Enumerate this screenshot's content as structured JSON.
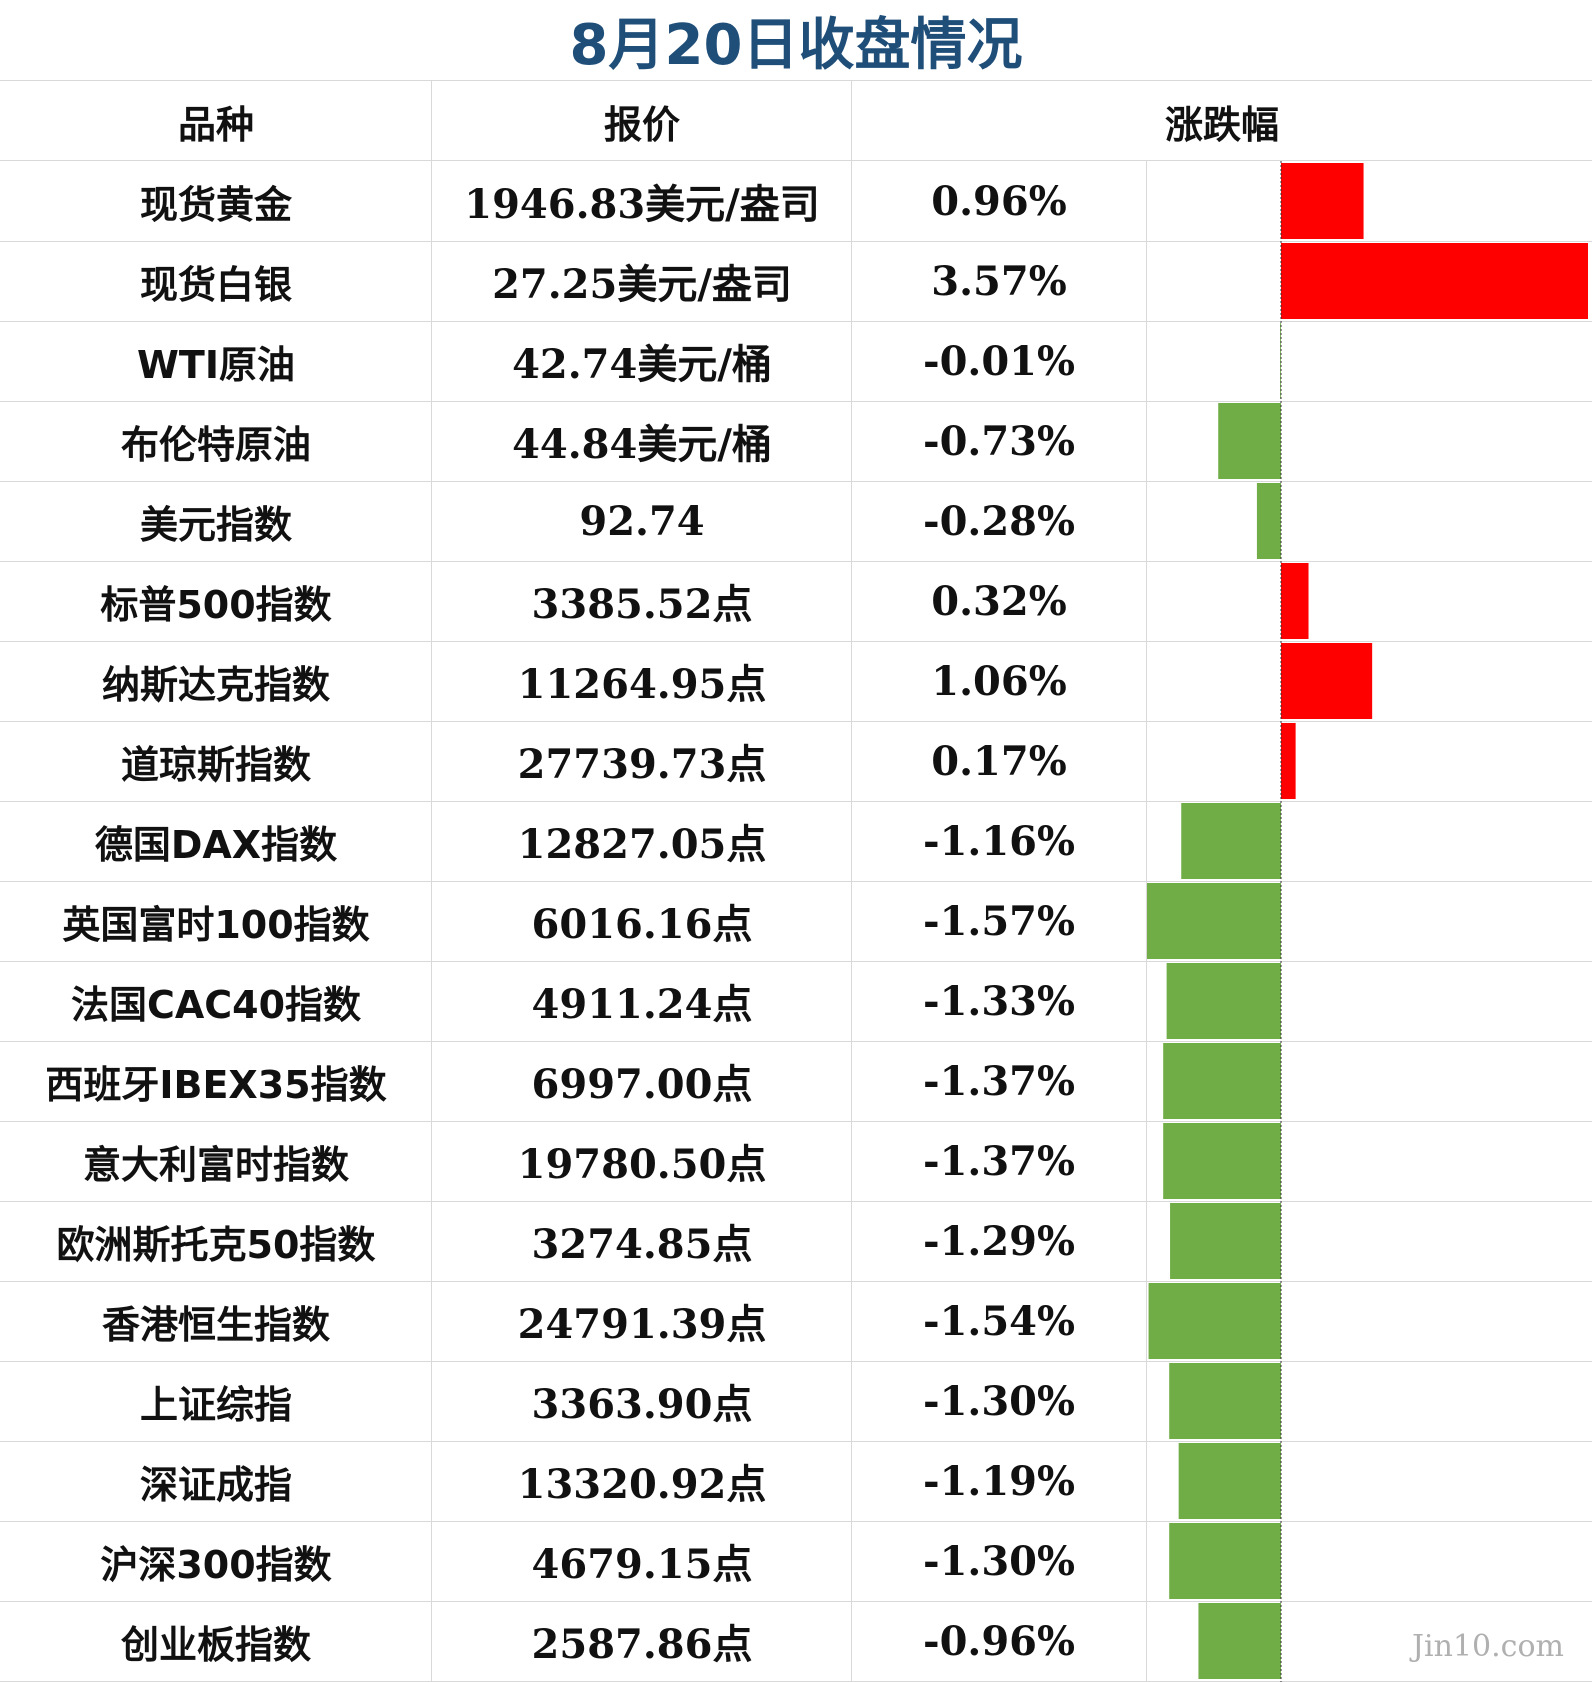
{
  "title": "8月20日收盘情况",
  "headers": {
    "name": "品种",
    "price": "报价",
    "change": "涨跌幅"
  },
  "colors": {
    "title": "#1f4e79",
    "up": "#ff0000",
    "down": "#70ad47",
    "grid": "#d9d9d9"
  },
  "watermark": "Jin10.com",
  "chart_data": {
    "type": "table",
    "columns": [
      "品种",
      "报价",
      "涨跌幅"
    ],
    "rows": [
      {
        "name": "现货黄金",
        "price": "1946.83美元/盎司",
        "change_label": "0.96%",
        "change": 0.96
      },
      {
        "name": "现货白银",
        "price": "27.25美元/盎司",
        "change_label": "3.57%",
        "change": 3.57
      },
      {
        "name": "WTI原油",
        "price": "42.74美元/桶",
        "change_label": "-0.01%",
        "change": -0.01
      },
      {
        "name": "布伦特原油",
        "price": "44.84美元/桶",
        "change_label": "-0.73%",
        "change": -0.73
      },
      {
        "name": "美元指数",
        "price": "92.74",
        "change_label": "-0.28%",
        "change": -0.28
      },
      {
        "name": "标普500指数",
        "price": "3385.52点",
        "change_label": "0.32%",
        "change": 0.32
      },
      {
        "name": "纳斯达克指数",
        "price": "11264.95点",
        "change_label": "1.06%",
        "change": 1.06
      },
      {
        "name": "道琼斯指数",
        "price": "27739.73点",
        "change_label": "0.17%",
        "change": 0.17
      },
      {
        "name": "德国DAX指数",
        "price": "12827.05点",
        "change_label": "-1.16%",
        "change": -1.16
      },
      {
        "name": "英国富时100指数",
        "price": "6016.16点",
        "change_label": "-1.57%",
        "change": -1.57
      },
      {
        "name": "法国CAC40指数",
        "price": "4911.24点",
        "change_label": "-1.33%",
        "change": -1.33
      },
      {
        "name": "西班牙IBEX35指数",
        "price": "6997.00点",
        "change_label": "-1.37%",
        "change": -1.37
      },
      {
        "name": "意大利富时指数",
        "price": "19780.50点",
        "change_label": "-1.37%",
        "change": -1.37
      },
      {
        "name": "欧洲斯托克50指数",
        "price": "3274.85点",
        "change_label": "-1.29%",
        "change": -1.29
      },
      {
        "name": "香港恒生指数",
        "price": "24791.39点",
        "change_label": "-1.54%",
        "change": -1.54
      },
      {
        "name": "上证综指",
        "price": "3363.90点",
        "change_label": "-1.30%",
        "change": -1.3
      },
      {
        "name": "深证成指",
        "price": "13320.92点",
        "change_label": "-1.19%",
        "change": -1.19
      },
      {
        "name": "沪深300指数",
        "price": "4679.15点",
        "change_label": "-1.30%",
        "change": -1.3
      },
      {
        "name": "创业板指数",
        "price": "2587.86点",
        "change_label": "-0.96%",
        "change": -0.96
      }
    ]
  }
}
